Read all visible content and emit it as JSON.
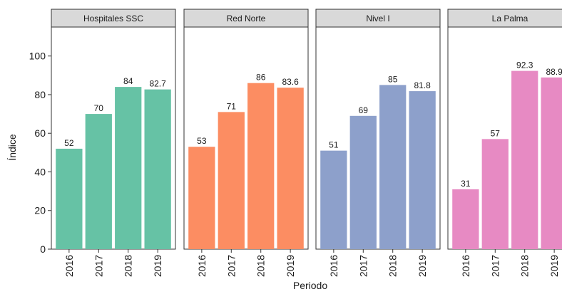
{
  "chart_data": {
    "type": "bar",
    "xlabel": "Periodo",
    "ylabel": "Índice",
    "ylim": [
      0,
      115
    ],
    "y_ticks": [
      0,
      20,
      40,
      60,
      80,
      100
    ],
    "categories": [
      "2016",
      "2017",
      "2018",
      "2019"
    ],
    "grid": false,
    "facets": [
      {
        "name": "Hospitales SSC",
        "color": "#66c2a5",
        "values": [
          52,
          70,
          84,
          82.7
        ],
        "labels": [
          "52",
          "70",
          "84",
          "82.7"
        ]
      },
      {
        "name": "Red Norte",
        "color": "#fc8d62",
        "values": [
          53,
          71,
          86,
          83.6
        ],
        "labels": [
          "53",
          "71",
          "86",
          "83.6"
        ]
      },
      {
        "name": "Nivel I",
        "color": "#8da0cb",
        "values": [
          51,
          69,
          85,
          81.8
        ],
        "labels": [
          "51",
          "69",
          "85",
          "81.8"
        ]
      },
      {
        "name": "La Palma",
        "color": "#e78ac3",
        "values": [
          31,
          57,
          92.3,
          88.9
        ],
        "labels": [
          "31",
          "57",
          "92.3",
          "88.9"
        ]
      }
    ]
  }
}
